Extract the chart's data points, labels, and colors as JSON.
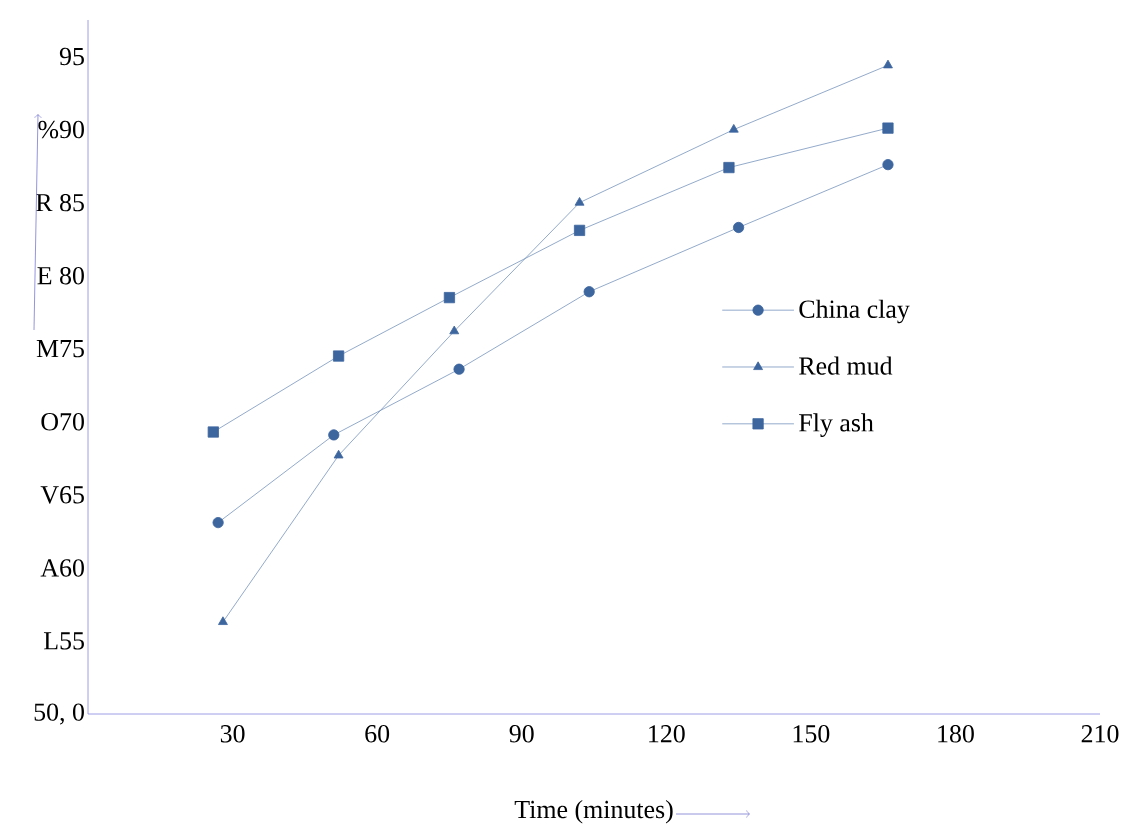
{
  "chart_data": {
    "type": "line",
    "xlabel": "Time (minutes)",
    "xlim": [
      0,
      210
    ],
    "ylim": [
      50,
      97.5
    ],
    "xticks": [
      30,
      60,
      90,
      120,
      150,
      180,
      210
    ],
    "yticks": [
      {
        "value": 50,
        "label": "50, 0"
      },
      {
        "value": 55,
        "label": "L55"
      },
      {
        "value": 60,
        "label": "A60"
      },
      {
        "value": 65,
        "label": "V65"
      },
      {
        "value": 70,
        "label": "O70"
      },
      {
        "value": 75,
        "label": "M75"
      },
      {
        "value": 80,
        "label": "E 80"
      },
      {
        "value": 85,
        "label": "R 85"
      },
      {
        "value": 90,
        "label": "%90"
      },
      {
        "value": 95,
        "label": "95"
      }
    ],
    "grid": false,
    "legend": "right",
    "line_style": "solid",
    "series": [
      {
        "name": "China clay",
        "color": "#3d669f",
        "marker": "circle",
        "x": [
          27,
          51,
          77,
          104,
          135,
          166
        ],
        "values": [
          63.1,
          69.1,
          73.6,
          78.9,
          83.3,
          87.6
        ]
      },
      {
        "name": "Red mud",
        "color": "#3d669f",
        "marker": "triangle",
        "x": [
          28,
          52,
          76,
          102,
          134,
          166
        ],
        "values": [
          56.3,
          67.7,
          76.2,
          85,
          90,
          94.4
        ]
      },
      {
        "name": "Fly ash",
        "color": "#3d669f",
        "marker": "square",
        "x": [
          26,
          52,
          75,
          102,
          133,
          166
        ],
        "values": [
          69.3,
          74.5,
          78.5,
          83.1,
          87.4,
          90.1
        ]
      }
    ]
  }
}
